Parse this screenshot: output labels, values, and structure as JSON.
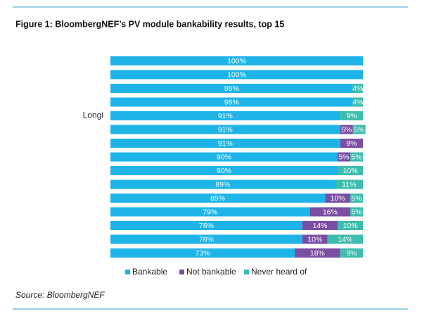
{
  "chart_data": {
    "type": "stacked-bar-horizontal",
    "title": "Figure 1:  BloombergNEF’s PV module bankability results, top 15",
    "categories": [
      null,
      null,
      null,
      null,
      "Longi",
      null,
      null,
      null,
      null,
      null,
      null,
      null,
      null,
      null,
      null
    ],
    "series": [
      {
        "name": "Bankable",
        "color": "#1eb4e8",
        "values": [
          100,
          100,
          96,
          96,
          91,
          91,
          91,
          90,
          90,
          89,
          85,
          79,
          76,
          76,
          73
        ],
        "value_labels": [
          "100%",
          "100%",
          "96%",
          "96%",
          "91%",
          "91%",
          "91%",
          "90%",
          "90%",
          "89%",
          "85%",
          "79%",
          "76%",
          "76%",
          "73%"
        ]
      },
      {
        "name": "Not bankable",
        "color": "#7a4fa3",
        "values": [
          null,
          null,
          null,
          null,
          null,
          5,
          9,
          5,
          null,
          null,
          10,
          16,
          14,
          10,
          18
        ],
        "value_labels": [
          null,
          null,
          null,
          null,
          null,
          "5%",
          "9%",
          "5%",
          null,
          null,
          "10%",
          "16%",
          "14%",
          "10%",
          "18%"
        ]
      },
      {
        "name": "Never heard of",
        "color": "#3dbdad",
        "values": [
          null,
          null,
          4,
          4,
          9,
          5,
          null,
          5,
          10,
          11,
          5,
          5,
          10,
          14,
          9
        ],
        "value_labels": [
          null,
          null,
          "4%",
          "4%",
          "9%",
          "5%",
          null,
          "5%",
          "10%",
          "11%",
          "5%",
          "5%",
          "10%",
          "14%",
          "9%"
        ]
      }
    ],
    "xlim": [
      0,
      100
    ],
    "source": "Source: BloombergNEF"
  }
}
